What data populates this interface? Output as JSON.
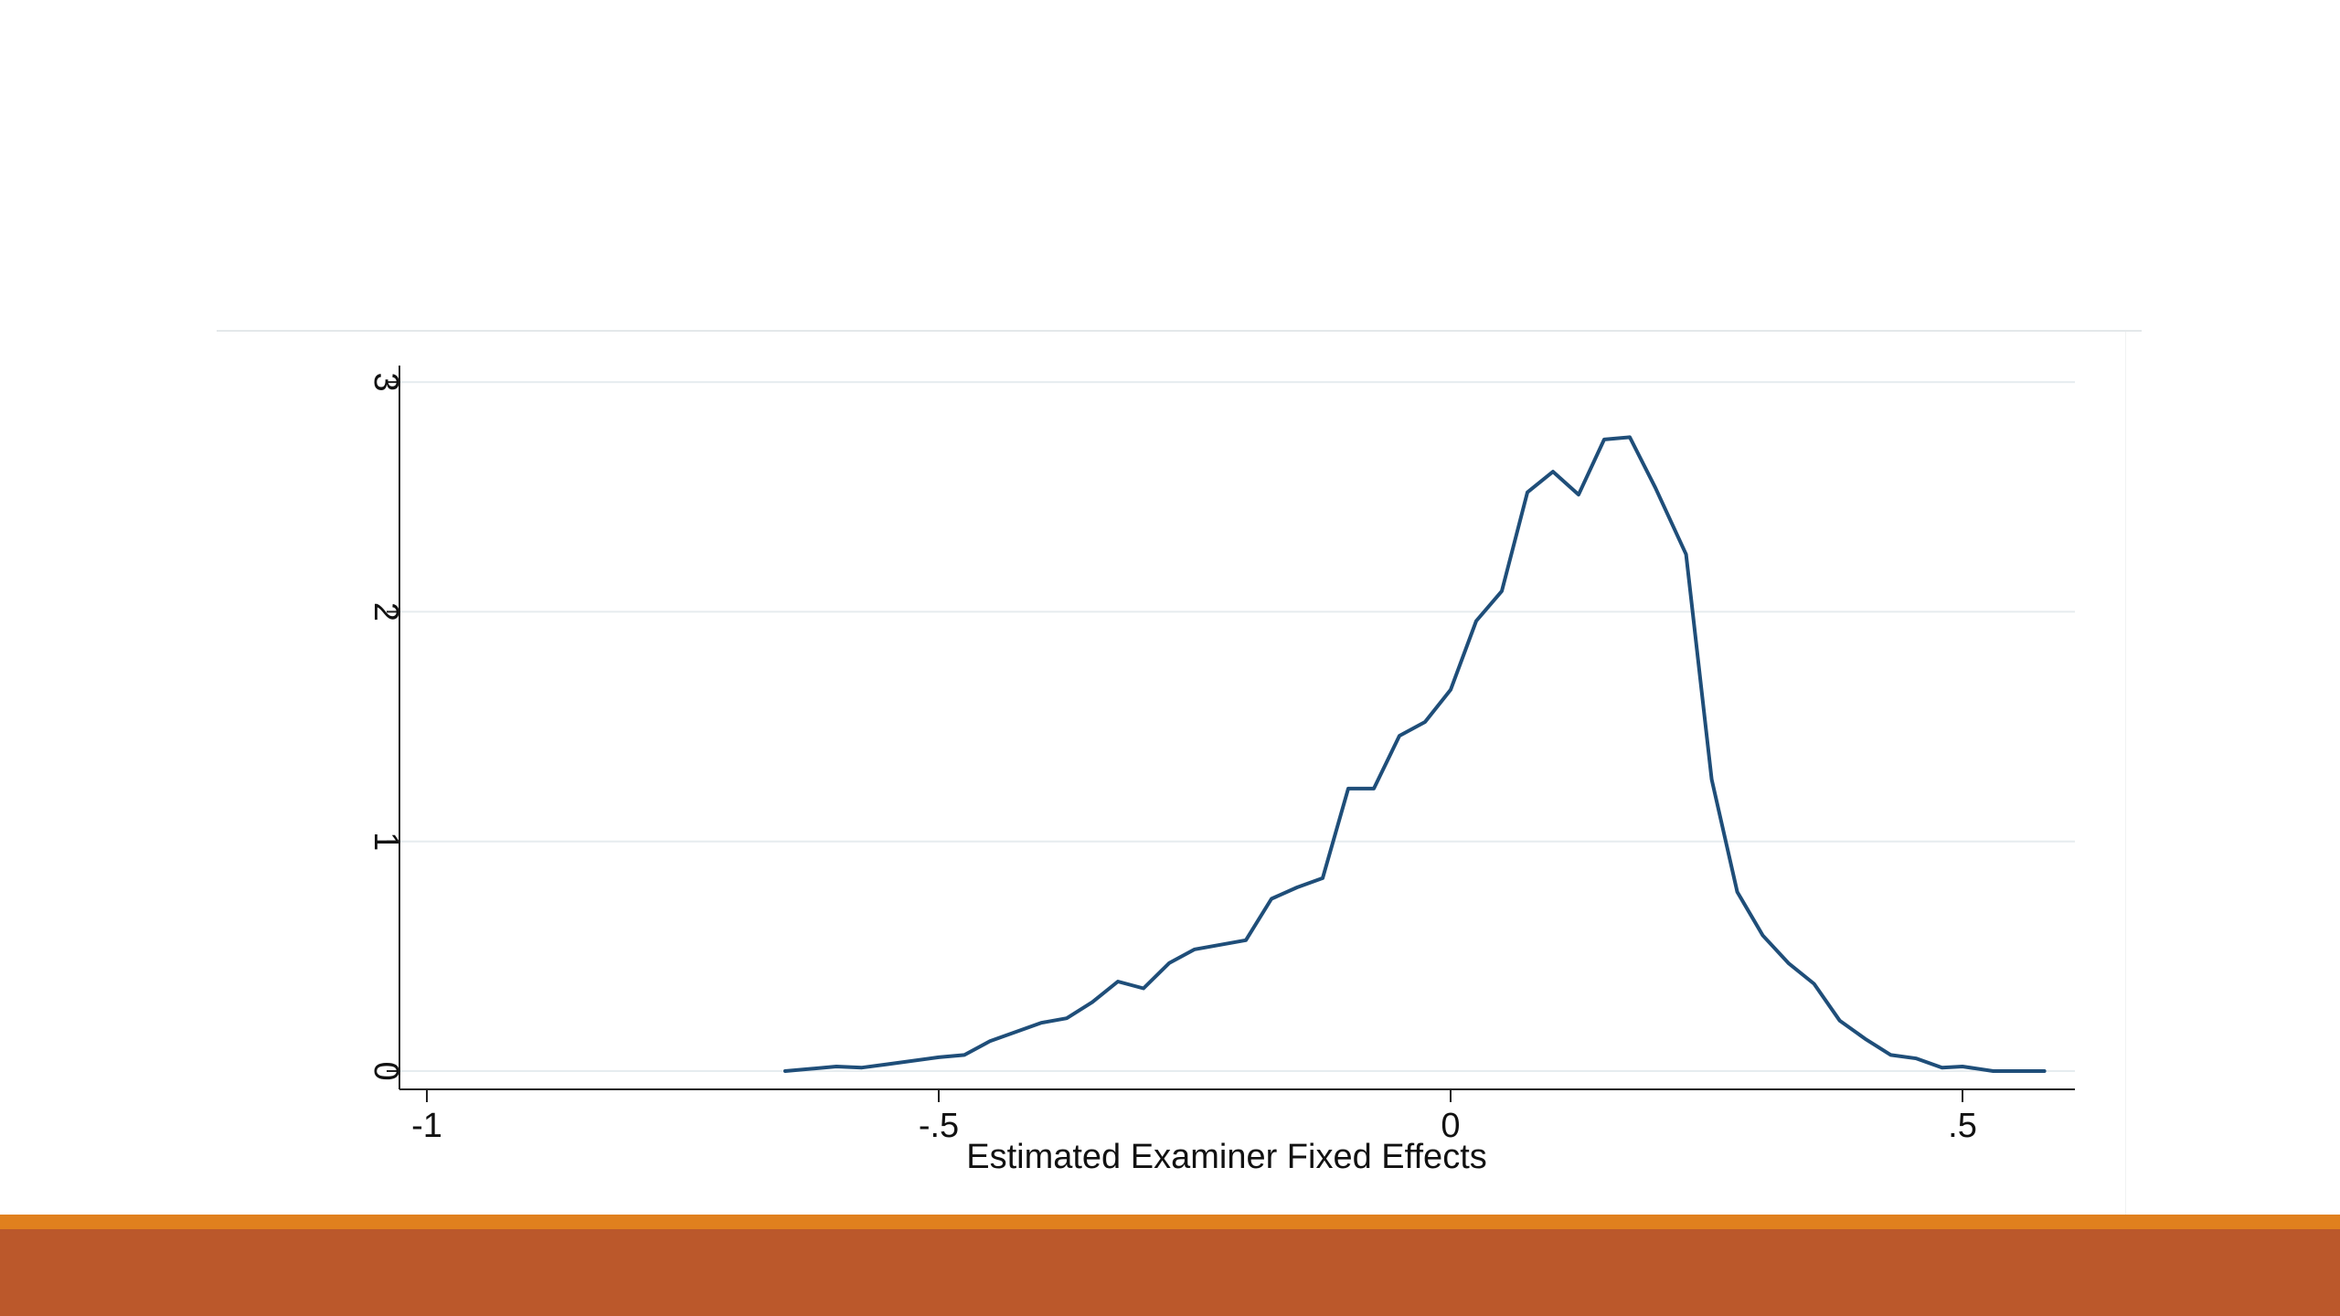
{
  "colors": {
    "line": "#1f4e79",
    "grid": "#e6ecef",
    "axis": "#222222",
    "accent_orange": "#e0801e",
    "accent_rust": "#bb582b"
  },
  "chart_data": {
    "type": "line",
    "title": "",
    "xlabel": "Estimated Examiner Fixed Effects",
    "ylabel": "",
    "xlim": [
      -1.03,
      0.62
    ],
    "ylim": [
      -0.08,
      3.08
    ],
    "grid": true,
    "legend": "none",
    "x_ticks": [
      -1,
      -0.5,
      0,
      0.5
    ],
    "x_tick_labels": [
      "-1",
      "-.5",
      "0",
      ".5"
    ],
    "y_ticks": [
      0,
      1,
      2,
      3
    ],
    "y_tick_labels": [
      "0",
      "1",
      "2",
      "3"
    ],
    "series": [
      {
        "x": [
          -0.65,
          -0.6,
          -0.575,
          -0.55,
          -0.5,
          -0.475,
          -0.45,
          -0.425,
          -0.4,
          -0.375,
          -0.35,
          -0.325,
          -0.3,
          -0.275,
          -0.25,
          -0.2,
          -0.175,
          -0.15,
          -0.125,
          -0.1,
          -0.075,
          -0.05,
          -0.025,
          0.0,
          0.025,
          0.05,
          0.075,
          0.1,
          0.125,
          0.15,
          0.175,
          0.2,
          0.23,
          0.255,
          0.28,
          0.305,
          0.33,
          0.355,
          0.38,
          0.405,
          0.43,
          0.455,
          0.48,
          0.5,
          0.53,
          0.58
        ],
        "y": [
          0.0,
          0.02,
          0.015,
          0.03,
          0.06,
          0.07,
          0.13,
          0.17,
          0.21,
          0.23,
          0.3,
          0.39,
          0.36,
          0.47,
          0.53,
          0.57,
          0.75,
          0.8,
          0.84,
          1.23,
          1.23,
          1.46,
          1.52,
          1.66,
          1.96,
          2.09,
          2.52,
          2.61,
          2.51,
          2.75,
          2.76,
          2.54,
          2.25,
          1.27,
          0.78,
          0.59,
          0.47,
          0.38,
          0.22,
          0.14,
          0.07,
          0.055,
          0.015,
          0.02,
          0.0,
          0.0
        ]
      }
    ]
  }
}
